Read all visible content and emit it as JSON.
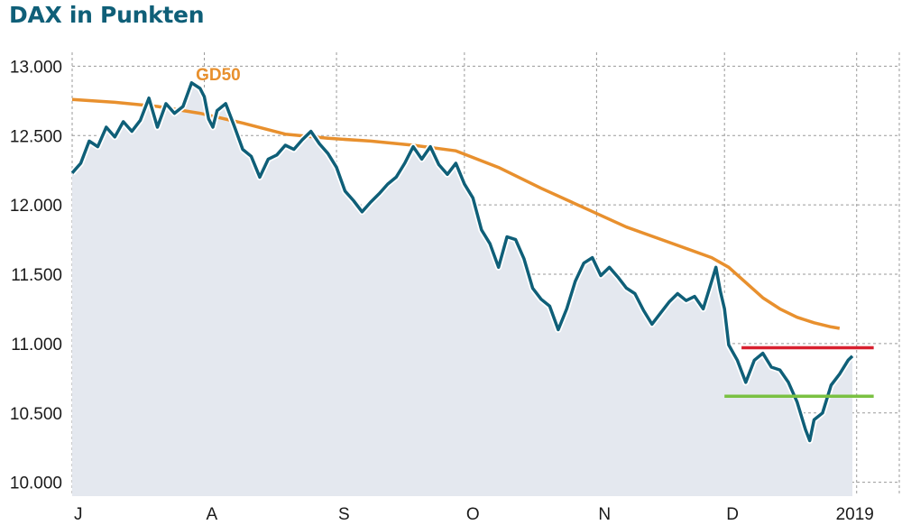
{
  "title": "DAX in Punkten",
  "chart_data": {
    "type": "line",
    "ylim": [
      9900,
      13100
    ],
    "y_ticks": [
      10000,
      10500,
      11000,
      11500,
      12000,
      12500,
      13000
    ],
    "y_tick_labels": [
      "10.000",
      "10.500",
      "11.000",
      "11.500",
      "12.000",
      "12.500",
      "13.000"
    ],
    "x_ticks": [
      {
        "label": "J",
        "t": 0
      },
      {
        "label": "A",
        "t": 31
      },
      {
        "label": "S",
        "t": 62
      },
      {
        "label": "O",
        "t": 92
      },
      {
        "label": "N",
        "t": 123
      },
      {
        "label": "D",
        "t": 153
      },
      {
        "label": "2019",
        "t": 184
      }
    ],
    "grid": true,
    "series": [
      {
        "role": "dax",
        "color": "#0f5f78",
        "points": [
          [
            0,
            12230
          ],
          [
            2,
            12300
          ],
          [
            4,
            12460
          ],
          [
            6,
            12420
          ],
          [
            8,
            12560
          ],
          [
            10,
            12490
          ],
          [
            12,
            12600
          ],
          [
            14,
            12530
          ],
          [
            16,
            12610
          ],
          [
            18,
            12770
          ],
          [
            20,
            12560
          ],
          [
            22,
            12730
          ],
          [
            24,
            12660
          ],
          [
            26,
            12710
          ],
          [
            28,
            12880
          ],
          [
            30,
            12840
          ],
          [
            31,
            12780
          ],
          [
            32,
            12620
          ],
          [
            33,
            12560
          ],
          [
            34,
            12680
          ],
          [
            36,
            12730
          ],
          [
            38,
            12570
          ],
          [
            40,
            12400
          ],
          [
            42,
            12350
          ],
          [
            44,
            12200
          ],
          [
            46,
            12330
          ],
          [
            48,
            12360
          ],
          [
            50,
            12430
          ],
          [
            52,
            12400
          ],
          [
            54,
            12470
          ],
          [
            56,
            12530
          ],
          [
            58,
            12440
          ],
          [
            60,
            12370
          ],
          [
            62,
            12270
          ],
          [
            64,
            12100
          ],
          [
            66,
            12030
          ],
          [
            68,
            11950
          ],
          [
            70,
            12020
          ],
          [
            72,
            12080
          ],
          [
            74,
            12150
          ],
          [
            76,
            12200
          ],
          [
            78,
            12300
          ],
          [
            80,
            12420
          ],
          [
            82,
            12330
          ],
          [
            84,
            12420
          ],
          [
            86,
            12290
          ],
          [
            88,
            12220
          ],
          [
            90,
            12300
          ],
          [
            92,
            12150
          ],
          [
            94,
            12050
          ],
          [
            96,
            11820
          ],
          [
            98,
            11720
          ],
          [
            100,
            11550
          ],
          [
            102,
            11770
          ],
          [
            104,
            11750
          ],
          [
            106,
            11610
          ],
          [
            108,
            11400
          ],
          [
            110,
            11320
          ],
          [
            112,
            11270
          ],
          [
            114,
            11100
          ],
          [
            116,
            11250
          ],
          [
            118,
            11450
          ],
          [
            120,
            11580
          ],
          [
            122,
            11620
          ],
          [
            124,
            11490
          ],
          [
            126,
            11550
          ],
          [
            128,
            11480
          ],
          [
            130,
            11400
          ],
          [
            132,
            11360
          ],
          [
            134,
            11240
          ],
          [
            136,
            11140
          ],
          [
            138,
            11220
          ],
          [
            140,
            11300
          ],
          [
            142,
            11360
          ],
          [
            144,
            11310
          ],
          [
            146,
            11340
          ],
          [
            148,
            11250
          ],
          [
            150,
            11450
          ],
          [
            151,
            11550
          ],
          [
            152,
            11380
          ],
          [
            153,
            11250
          ],
          [
            154,
            10990
          ],
          [
            156,
            10880
          ],
          [
            158,
            10720
          ],
          [
            160,
            10880
          ],
          [
            162,
            10930
          ],
          [
            164,
            10830
          ],
          [
            166,
            10810
          ],
          [
            168,
            10720
          ],
          [
            170,
            10580
          ],
          [
            172,
            10380
          ],
          [
            173,
            10300
          ],
          [
            174,
            10450
          ],
          [
            176,
            10500
          ],
          [
            178,
            10700
          ],
          [
            180,
            10780
          ],
          [
            182,
            10880
          ],
          [
            183,
            10910
          ]
        ]
      },
      {
        "role": "GD50",
        "name": "GD50",
        "color": "#e8902e",
        "points": [
          [
            0,
            12760
          ],
          [
            10,
            12740
          ],
          [
            20,
            12710
          ],
          [
            30,
            12660
          ],
          [
            40,
            12590
          ],
          [
            50,
            12510
          ],
          [
            60,
            12480
          ],
          [
            70,
            12460
          ],
          [
            80,
            12430
          ],
          [
            90,
            12390
          ],
          [
            100,
            12270
          ],
          [
            110,
            12120
          ],
          [
            120,
            11980
          ],
          [
            130,
            11840
          ],
          [
            140,
            11730
          ],
          [
            150,
            11620
          ],
          [
            154,
            11550
          ],
          [
            158,
            11440
          ],
          [
            162,
            11330
          ],
          [
            166,
            11250
          ],
          [
            170,
            11190
          ],
          [
            174,
            11150
          ],
          [
            178,
            11120
          ],
          [
            180,
            11110
          ]
        ]
      }
    ],
    "reference_lines": [
      {
        "role": "resistance",
        "y": 10970,
        "x": [
          157,
          188
        ],
        "color": "#d8202f"
      },
      {
        "role": "support",
        "y": 10620,
        "x": [
          153,
          188
        ],
        "color": "#7ac142"
      }
    ],
    "area_fill": "#e4e8ef"
  }
}
